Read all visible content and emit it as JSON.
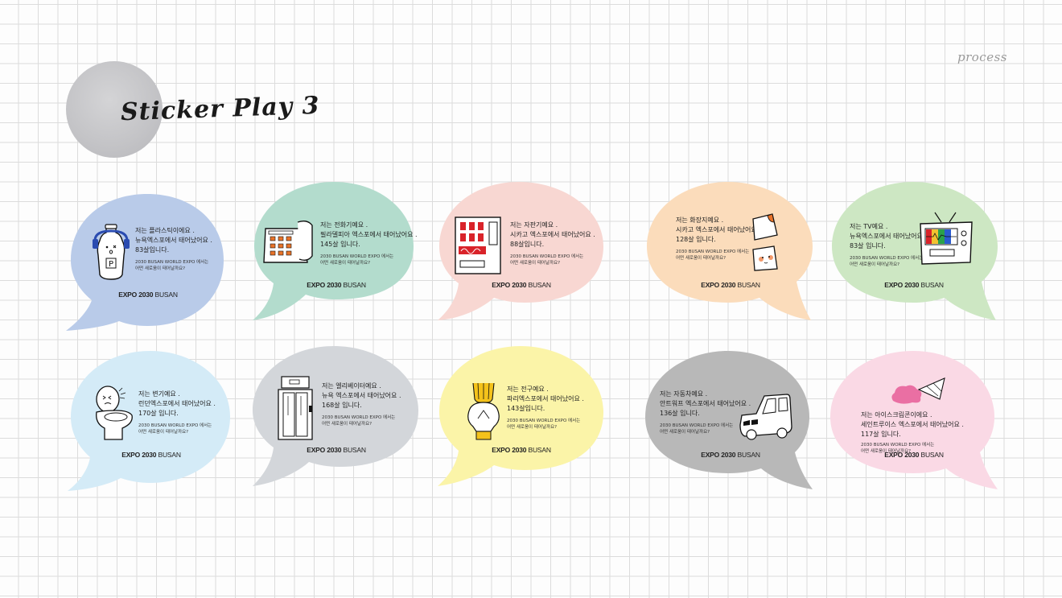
{
  "header": {
    "process_label": "process",
    "title": "Sticker Play 3"
  },
  "brand": {
    "expo": "EXPO 2030",
    "city": "BUSAN"
  },
  "expo_question": [
    "2030 BUSAN WORLD EXPO 에서는",
    "어떤 새로움이 태어날까요?"
  ],
  "colors": {
    "blue": "#b9cbe9",
    "mint": "#b3dccd",
    "peach": "#f8d7d2",
    "orange": "#fbdcbb",
    "green": "#cde7c3",
    "skyblue": "#d4ebf7",
    "gray": "#d3d6da",
    "yellow": "#fbf4a8",
    "darkgray": "#b8b8b8",
    "pink": "#fad9e5"
  },
  "stickers": [
    {
      "icon": "plastic-bottle-icon",
      "lines": [
        "저는 플라스틱이에요 .",
        "뉴욕엑스포에서 태어났어요 .",
        "83살입니다."
      ]
    },
    {
      "icon": "telephone-icon",
      "lines": [
        "저는 전화기예요 .",
        "필라델피아 엑스포에서 태어났어요 .",
        "145살 입니다."
      ]
    },
    {
      "icon": "vending-machine-icon",
      "lines": [
        "저는 자판기예요 .",
        "시카고 엑스포에서 태어났어요 .",
        "88살입니다."
      ]
    },
    {
      "icon": "paper-towel-icon",
      "lines": [
        "저는 화장지예요 .",
        "시카고 엑스포에서 태어났어요 .",
        "128살 입니다."
      ]
    },
    {
      "icon": "tv-icon",
      "lines": [
        "저는 TV예요 .",
        "뉴욕엑스포에서 태어났어요 .",
        "83살 입니다."
      ]
    },
    {
      "icon": "toilet-icon",
      "lines": [
        "저는 변기예요 .",
        "런던엑스포에서 태어났어요 .",
        "170살 입니다."
      ]
    },
    {
      "icon": "elevator-icon",
      "lines": [
        "저는 엘리베이터예요 .",
        "뉴욕 엑스포에서 태어났어요 .",
        "168살 입니다."
      ]
    },
    {
      "icon": "light-bulb-icon",
      "lines": [
        "저는 전구예요 .",
        "파리엑스포에서 태어났어요 .",
        "143살입니다."
      ]
    },
    {
      "icon": "car-icon",
      "lines": [
        "저는 자동차예요 .",
        "안트워프 엑스포에서 태어났어요 .",
        "136살 입니다."
      ]
    },
    {
      "icon": "ice-cream-cone-icon",
      "lines": [
        "저는 아이스크림콘이에요 .",
        "세인트루이스 엑스포에서 태어났어요 .",
        "117살 입니다."
      ]
    }
  ]
}
